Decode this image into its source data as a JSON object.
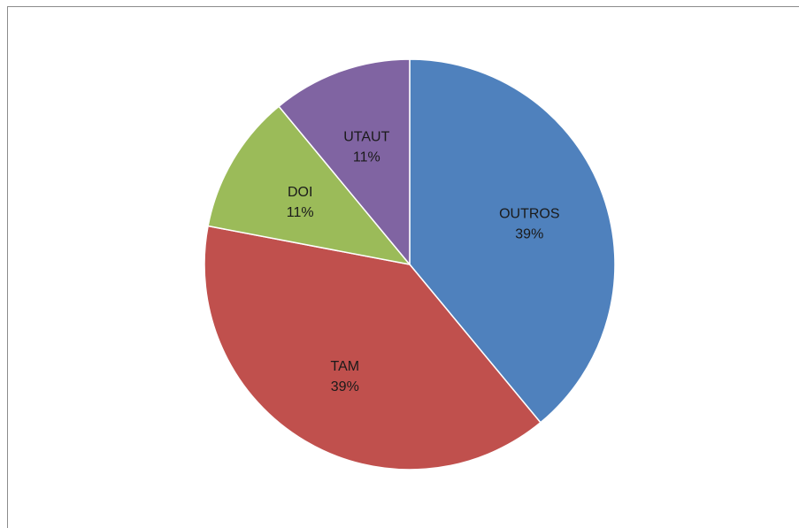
{
  "chart_data": {
    "type": "pie",
    "title": "",
    "slices": [
      {
        "label": "OUTROS",
        "value": 39,
        "display": "39%",
        "color": "#4f81bd"
      },
      {
        "label": "TAM",
        "value": 39,
        "display": "39%",
        "color": "#c0504d"
      },
      {
        "label": "DOI",
        "value": 11,
        "display": "11%",
        "color": "#9bbb59"
      },
      {
        "label": "UTAUT",
        "value": 11,
        "display": "11%",
        "color": "#8064a2"
      }
    ],
    "start_angle_deg": 0,
    "direction": "clockwise",
    "legend": "none",
    "data_labels": "inside"
  }
}
